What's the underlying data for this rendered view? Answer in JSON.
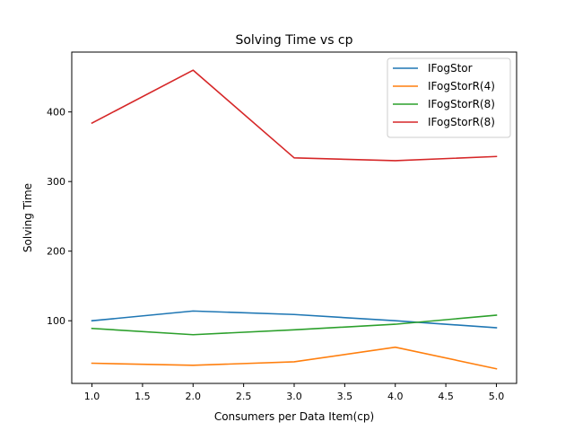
{
  "chart_data": {
    "type": "line",
    "title": "Solving Time vs cp",
    "xlabel": "Consumers per Data Item(cp)",
    "ylabel": "Solving Time",
    "xlim": [
      0.8,
      5.2
    ],
    "ylim": [
      10,
      486
    ],
    "xticks": [
      1.0,
      1.5,
      2.0,
      2.5,
      3.0,
      3.5,
      4.0,
      4.5,
      5.0
    ],
    "xtick_labels": [
      "1.0",
      "1.5",
      "2.0",
      "2.5",
      "3.0",
      "3.5",
      "4.0",
      "4.5",
      "5.0"
    ],
    "yticks": [
      100,
      200,
      300,
      400
    ],
    "ytick_labels": [
      "100",
      "200",
      "300",
      "400"
    ],
    "grid": false,
    "legend_position": "top-right",
    "x": [
      1,
      2,
      3,
      4,
      5
    ],
    "series": [
      {
        "name": "IFogStor",
        "color": "#1f77b4",
        "values": [
          100,
          114,
          109,
          100,
          90
        ]
      },
      {
        "name": "IFogStorR(4)",
        "color": "#ff7f0e",
        "values": [
          39,
          36,
          41,
          62,
          31
        ]
      },
      {
        "name": "IFogStorR(8)",
        "color": "#2ca02c",
        "values": [
          89,
          80,
          87,
          95,
          108
        ]
      },
      {
        "name": "IFogStorR(8)",
        "color": "#d62728",
        "values": [
          384,
          460,
          334,
          330,
          336
        ]
      }
    ]
  }
}
